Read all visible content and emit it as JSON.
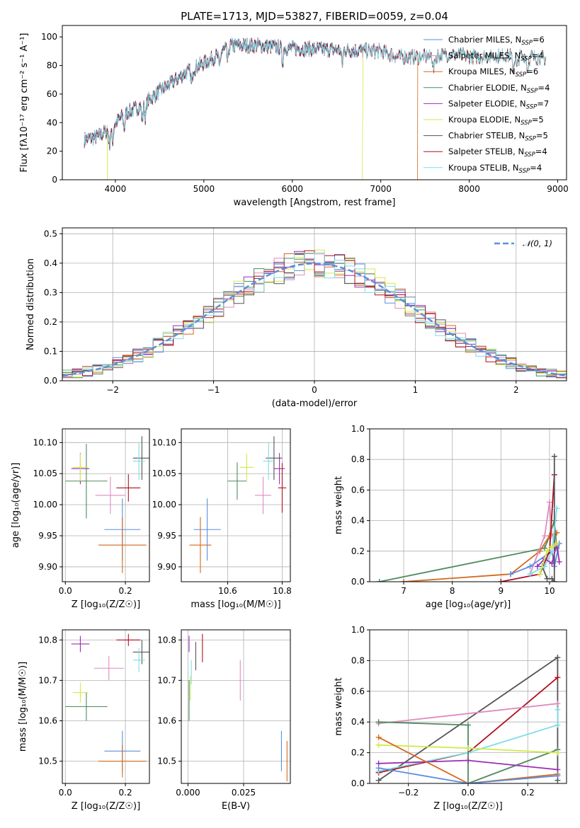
{
  "colors": {
    "Chabrier MILES": "#5b8fde",
    "Salpeter MILES": "#e08bbf",
    "Kroupa MILES": "#d2691e",
    "Chabrier ELODIE": "#4f8a5e",
    "Salpeter ELODIE": "#9a2fb5",
    "Kroupa ELODIE": "#d3e94a",
    "Chabrier STELIB": "#555555",
    "Salpeter STELIB": "#b01020",
    "Kroupa STELIB": "#7fdde5"
  },
  "chart_data": [
    {
      "id": "spectrum",
      "type": "line",
      "title": "PLATE=1713, MJD=53827, FIBERID=0059, z=0.04",
      "xlabel": "wavelength [Angstrom, rest frame]",
      "ylabel": "Flux [fλ10⁻¹⁷ erg cm⁻² s⁻¹ A⁻¹]",
      "xlim": [
        3400,
        9100
      ],
      "ylim": [
        0,
        108
      ],
      "xticks": [
        4000,
        5000,
        6000,
        7000,
        8000,
        9000
      ],
      "yticks": [
        0,
        20,
        40,
        60,
        80,
        100
      ],
      "grid": false,
      "legend_position": "upper right",
      "continuum": {
        "x": [
          3650,
          3800,
          3950,
          4100,
          4300,
          4500,
          4800,
          5100,
          5300,
          5600,
          6000,
          6500,
          7000,
          7200,
          7500,
          7800,
          8100,
          8400,
          8700,
          8900
        ],
        "y": [
          28,
          30,
          36,
          46,
          52,
          62,
          75,
          85,
          94,
          94,
          92,
          91,
          90,
          86,
          86,
          88,
          86,
          87,
          86,
          85
        ]
      },
      "series": [
        {
          "name": "Chabrier MILES",
          "nssp": "6",
          "x_end": 7400
        },
        {
          "name": "Salpeter MILES",
          "nssp": "4",
          "x_end": 7400
        },
        {
          "name": "Kroupa MILES",
          "nssp": "6",
          "x_end": 7420,
          "drop_at": 7415
        },
        {
          "name": "Chabrier ELODIE",
          "nssp": "4",
          "x_end": 6790
        },
        {
          "name": "Salpeter ELODIE",
          "nssp": "7",
          "x_end": 6790
        },
        {
          "name": "Kroupa ELODIE",
          "nssp": "5",
          "x_end": 6800,
          "drop_at": 6790,
          "drop_at_start": 3910
        },
        {
          "name": "Chabrier STELIB",
          "nssp": "5",
          "x_end": 8870
        },
        {
          "name": "Salpeter STELIB",
          "nssp": "4",
          "x_end": 8870
        },
        {
          "name": "Kroupa STELIB",
          "nssp": "4",
          "x_end": 8870
        }
      ]
    },
    {
      "id": "residuals",
      "type": "step",
      "xlabel": "(data-model)/error",
      "ylabel": "Normed distribution",
      "xlim": [
        -2.5,
        2.5
      ],
      "ylim": [
        0,
        0.52
      ],
      "xticks": [
        -2,
        -1,
        0,
        1,
        2
      ],
      "yticks": [
        0.0,
        0.1,
        0.2,
        0.3,
        0.4,
        0.5
      ],
      "grid": true,
      "legend_position": "upper right",
      "legend_label": "N(0,1)",
      "reference_curve": "gaussian, mean 0, sigma 1"
    },
    {
      "id": "age_vs_Z",
      "type": "errorbar",
      "xlabel": "Z [log₁₀(Z/Z☉)]",
      "ylabel": "age  [log₁₀(age/yr)]",
      "xlim": [
        -0.01,
        0.28
      ],
      "ylim": [
        9.876,
        10.122
      ],
      "xticks": [
        0.0,
        0.2
      ],
      "yticks": [
        9.9,
        9.95,
        10.0,
        10.05,
        10.1
      ],
      "grid": true,
      "points": [
        {
          "series": "Chabrier MILES",
          "x": 0.19,
          "xerr": 0.06,
          "y": 9.96,
          "yerr": 0.05
        },
        {
          "series": "Salpeter MILES",
          "x": 0.15,
          "xerr": 0.05,
          "y": 10.015,
          "yerr": 0.03
        },
        {
          "series": "Kroupa MILES",
          "x": 0.19,
          "xerr": 0.08,
          "y": 9.935,
          "yerr": 0.045
        },
        {
          "series": "Chabrier ELODIE",
          "x": 0.07,
          "xerr": 0.07,
          "y": 10.038,
          "yerr": 0.06
        },
        {
          "series": "Salpeter ELODIE",
          "x": 0.05,
          "xerr": 0.03,
          "y": 10.058,
          "yerr": 0.025
        },
        {
          "series": "Kroupa ELODIE",
          "x": 0.05,
          "xerr": 0.025,
          "y": 10.06,
          "yerr": 0.022
        },
        {
          "series": "Chabrier STELIB",
          "x": 0.255,
          "xerr": 0.03,
          "y": 10.075,
          "yerr": 0.035
        },
        {
          "series": "Salpeter STELIB",
          "x": 0.21,
          "xerr": 0.04,
          "y": 10.027,
          "yerr": 0.022
        },
        {
          "series": "Kroupa STELIB",
          "x": 0.245,
          "xerr": 0.02,
          "y": 10.07,
          "yerr": 0.03
        }
      ]
    },
    {
      "id": "age_vs_mass",
      "type": "errorbar",
      "xlabel": "mass [log₁₀(M/M☉)]",
      "ylabel": "",
      "xlim": [
        10.43,
        10.83
      ],
      "ylim": [
        9.876,
        10.122
      ],
      "xticks": [
        10.6,
        10.8
      ],
      "yticks": [
        9.9,
        9.95,
        10.0,
        10.05,
        10.1
      ],
      "grid": true,
      "points": [
        {
          "series": "Chabrier MILES",
          "x": 10.525,
          "xerr": 0.05,
          "y": 9.96,
          "yerr": 0.05
        },
        {
          "series": "Salpeter MILES",
          "x": 10.73,
          "xerr": 0.03,
          "y": 10.015,
          "yerr": 0.03
        },
        {
          "series": "Kroupa MILES",
          "x": 10.5,
          "xerr": 0.04,
          "y": 9.935,
          "yerr": 0.045
        },
        {
          "series": "Chabrier ELODIE",
          "x": 10.635,
          "xerr": 0.035,
          "y": 10.038,
          "yerr": 0.03
        },
        {
          "series": "Salpeter ELODIE",
          "x": 10.79,
          "xerr": 0.02,
          "y": 10.058,
          "yerr": 0.025
        },
        {
          "series": "Kroupa ELODIE",
          "x": 10.67,
          "xerr": 0.025,
          "y": 10.06,
          "yerr": 0.022
        },
        {
          "series": "Chabrier STELIB",
          "x": 10.77,
          "xerr": 0.03,
          "y": 10.075,
          "yerr": 0.035
        },
        {
          "series": "Salpeter STELIB",
          "x": 10.8,
          "xerr": 0.015,
          "y": 10.027,
          "yerr": 0.04
        },
        {
          "series": "Kroupa STELIB",
          "x": 10.75,
          "xerr": 0.02,
          "y": 10.07,
          "yerr": 0.03
        }
      ]
    },
    {
      "id": "weight_vs_age",
      "type": "line",
      "xlabel": "age  [log₁₀(age/yr)]",
      "ylabel": "mass weight",
      "xlim": [
        6.3,
        10.35
      ],
      "ylim": [
        0,
        1.0
      ],
      "xticks": [
        7,
        8,
        9,
        10
      ],
      "yticks": [
        0.0,
        0.2,
        0.4,
        0.6,
        0.8,
        1.0
      ],
      "grid": true,
      "series": [
        {
          "name": "Chabrier ELODIE",
          "x": [
            6.5,
            9.9,
            10.0,
            10.1,
            10.15
          ],
          "y": [
            0.0,
            0.22,
            0.3,
            0.4,
            0.22
          ]
        },
        {
          "name": "Kroupa MILES",
          "x": [
            7.0,
            9.2,
            9.8,
            10.0,
            10.15
          ],
          "y": [
            0.0,
            0.05,
            0.2,
            0.3,
            0.32
          ]
        },
        {
          "name": "Salpeter MILES",
          "x": [
            9.6,
            9.9,
            10.0,
            10.05
          ],
          "y": [
            0.05,
            0.3,
            0.52,
            0.3
          ]
        },
        {
          "name": "Chabrier MILES",
          "x": [
            9.2,
            9.6,
            10.05,
            10.1,
            10.2
          ],
          "y": [
            0.05,
            0.1,
            0.2,
            0.1,
            0.25
          ]
        },
        {
          "name": "Salpeter STELIB",
          "x": [
            9.0,
            9.8,
            10.0,
            10.1
          ],
          "y": [
            0.0,
            0.05,
            0.2,
            0.7
          ]
        },
        {
          "name": "Chabrier STELIB",
          "x": [
            9.85,
            9.95,
            10.05,
            10.1,
            10.1
          ],
          "y": [
            0.1,
            0.02,
            0.02,
            0.0,
            0.82
          ]
        },
        {
          "name": "Kroupa STELIB",
          "x": [
            9.6,
            9.9,
            10.05,
            10.15
          ],
          "y": [
            0.05,
            0.1,
            0.2,
            0.48
          ]
        },
        {
          "name": "Salpeter ELODIE",
          "x": [
            9.75,
            9.9,
            10.05,
            10.15,
            10.2
          ],
          "y": [
            0.1,
            0.15,
            0.12,
            0.25,
            0.13
          ]
        },
        {
          "name": "Kroupa ELODIE",
          "x": [
            9.8,
            9.95,
            10.05,
            10.15
          ],
          "y": [
            0.05,
            0.2,
            0.23,
            0.25
          ]
        }
      ]
    },
    {
      "id": "mass_vs_Z",
      "type": "errorbar",
      "xlabel": "Z [log₁₀(Z/Z☉)]",
      "ylabel": "mass [log₁₀(M/M☉)]",
      "xlim": [
        -0.01,
        0.28
      ],
      "ylim": [
        10.445,
        10.825
      ],
      "xticks": [
        0.0,
        0.2
      ],
      "yticks": [
        10.5,
        10.6,
        10.7,
        10.8
      ],
      "grid": true,
      "points": [
        {
          "series": "Chabrier MILES",
          "x": 0.19,
          "xerr": 0.06,
          "y": 10.525,
          "yerr": 0.05
        },
        {
          "series": "Salpeter MILES",
          "x": 0.145,
          "xerr": 0.05,
          "y": 10.73,
          "yerr": 0.03
        },
        {
          "series": "Kroupa MILES",
          "x": 0.19,
          "xerr": 0.08,
          "y": 10.5,
          "yerr": 0.04
        },
        {
          "series": "Chabrier ELODIE",
          "x": 0.07,
          "xerr": 0.07,
          "y": 10.635,
          "yerr": 0.035
        },
        {
          "series": "Salpeter ELODIE",
          "x": 0.05,
          "xerr": 0.03,
          "y": 10.79,
          "yerr": 0.02
        },
        {
          "series": "Kroupa ELODIE",
          "x": 0.05,
          "xerr": 0.025,
          "y": 10.67,
          "yerr": 0.025
        },
        {
          "series": "Chabrier STELIB",
          "x": 0.255,
          "xerr": 0.03,
          "y": 10.77,
          "yerr": 0.03
        },
        {
          "series": "Salpeter STELIB",
          "x": 0.21,
          "xerr": 0.04,
          "y": 10.8,
          "yerr": 0.015
        },
        {
          "series": "Kroupa STELIB",
          "x": 0.245,
          "xerr": 0.02,
          "y": 10.75,
          "yerr": 0.03
        }
      ]
    },
    {
      "id": "mass_vs_ebv",
      "type": "errorbar",
      "xlabel": "E(B-V)",
      "ylabel": "",
      "xlim": [
        -0.003,
        0.046
      ],
      "ylim": [
        10.445,
        10.825
      ],
      "xticks": [
        0.0,
        0.025
      ],
      "xticklabels": [
        "0.000",
        "0.025"
      ],
      "yticks": [
        10.5,
        10.6,
        10.7,
        10.8
      ],
      "grid": true,
      "points": [
        {
          "series": "Chabrier MILES",
          "x": 0.042,
          "xerr": 0,
          "y": 10.525,
          "yerr": 0.05
        },
        {
          "series": "Salpeter MILES",
          "x": 0.0235,
          "xerr": 0,
          "y": 10.7,
          "yerr": 0.05
        },
        {
          "series": "Kroupa MILES",
          "x": 0.0445,
          "xerr": 0,
          "y": 10.5,
          "yerr": 0.05
        },
        {
          "series": "Chabrier ELODIE",
          "x": 0.0005,
          "xerr": 0,
          "y": 10.65,
          "yerr": 0.05
        },
        {
          "series": "Salpeter ELODIE",
          "x": 0.0005,
          "xerr": 0,
          "y": 10.79,
          "yerr": 0.02
        },
        {
          "series": "Kroupa ELODIE",
          "x": 0.001,
          "xerr": 0,
          "y": 10.68,
          "yerr": 0.03
        },
        {
          "series": "Chabrier STELIB",
          "x": 0.0035,
          "xerr": 0,
          "y": 10.76,
          "yerr": 0.035
        },
        {
          "series": "Salpeter STELIB",
          "x": 0.0065,
          "xerr": 0,
          "y": 10.78,
          "yerr": 0.035
        },
        {
          "series": "Kroupa STELIB",
          "x": 0.0015,
          "xerr": 0,
          "y": 10.72,
          "yerr": 0.03
        }
      ]
    },
    {
      "id": "weight_vs_Z",
      "type": "line",
      "xlabel": "Z [log₁₀(Z/Z☉)]",
      "ylabel": "mass weight",
      "xlim": [
        -0.33,
        0.33
      ],
      "ylim": [
        0,
        1.0
      ],
      "xticks": [
        -0.2,
        0.0,
        0.2
      ],
      "yticks": [
        0.0,
        0.2,
        0.4,
        0.6,
        0.8,
        1.0
      ],
      "grid": true,
      "series": [
        {
          "name": "Chabrier STELIB",
          "x": [
            -0.3,
            0.3,
            0.3
          ],
          "y": [
            0.02,
            0.82,
            0.02
          ]
        },
        {
          "name": "Salpeter STELIB",
          "x": [
            -0.3,
            0.0,
            0.3
          ],
          "y": [
            0.07,
            0.2,
            0.69
          ]
        },
        {
          "name": "Salpeter MILES",
          "x": [
            -0.3,
            0.3
          ],
          "y": [
            0.39,
            0.52
          ]
        },
        {
          "name": "Kroupa STELIB",
          "x": [
            -0.3,
            0.0,
            0.3,
            0.3
          ],
          "y": [
            0.08,
            0.2,
            0.38,
            0.48
          ]
        },
        {
          "name": "Chabrier ELODIE",
          "x": [
            -0.3,
            0.0,
            0.0,
            0.3
          ],
          "y": [
            0.4,
            0.38,
            0.0,
            0.22
          ]
        },
        {
          "name": "Kroupa ELODIE",
          "x": [
            -0.3,
            0.0,
            0.3
          ],
          "y": [
            0.25,
            0.23,
            0.2
          ]
        },
        {
          "name": "Salpeter ELODIE",
          "x": [
            -0.3,
            0.0,
            0.3
          ],
          "y": [
            0.13,
            0.15,
            0.09
          ]
        },
        {
          "name": "Kroupa MILES",
          "x": [
            -0.3,
            0.0,
            0.3
          ],
          "y": [
            0.3,
            0.0,
            0.06
          ]
        },
        {
          "name": "Chabrier MILES",
          "x": [
            -0.3,
            0.0,
            0.3
          ],
          "y": [
            0.1,
            0.0,
            0.05
          ]
        }
      ]
    }
  ]
}
